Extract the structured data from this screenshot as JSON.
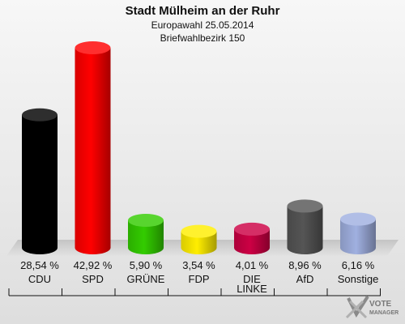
{
  "header": {
    "title": "Stadt Mülheim an der Ruhr",
    "subtitle1": "Europawahl 25.05.2014",
    "subtitle2": "Briefwahlbezirk 150"
  },
  "logo": {
    "line1": "VOTE",
    "line2": "MANAGER"
  },
  "chart_data": {
    "type": "bar",
    "title": "Stadt Mülheim an der Ruhr",
    "subtitle": "Europawahl 25.05.2014 · Briefwahlbezirk 150",
    "categories": [
      "CDU",
      "SPD",
      "GRÜNE",
      "FDP",
      "DIE LINKE",
      "AfD",
      "Sonstige"
    ],
    "values": [
      28.54,
      42.92,
      5.9,
      3.54,
      4.01,
      8.96,
      6.16
    ],
    "value_labels": [
      "28,54 %",
      "42,92 %",
      "5,90 %",
      "3,54 %",
      "4,01 %",
      "8,96 %",
      "6,16 %"
    ],
    "colors": [
      "#000000",
      "#ff0000",
      "#33cc00",
      "#ffee00",
      "#cc0044",
      "#555555",
      "#a0b0e0"
    ],
    "ylim": [
      0,
      45
    ],
    "grid": false,
    "legend": "none"
  }
}
